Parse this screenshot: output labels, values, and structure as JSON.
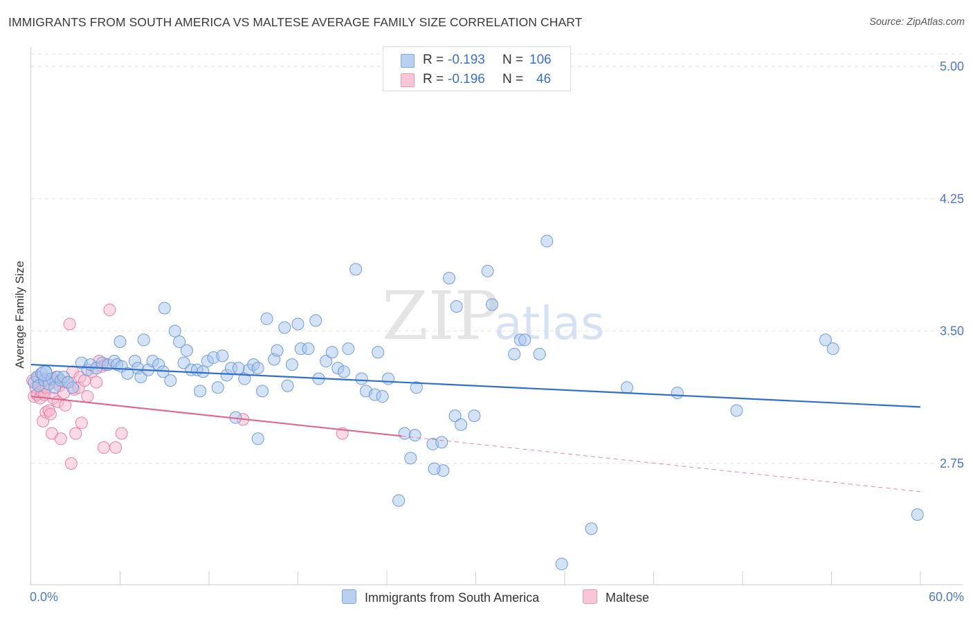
{
  "header": {
    "title": "IMMIGRANTS FROM SOUTH AMERICA VS MALTESE AVERAGE FAMILY SIZE CORRELATION CHART",
    "source": "Source: ZipAtlas.com"
  },
  "watermark": {
    "zip": "ZIP",
    "atlas": "atlas"
  },
  "legend": {
    "r_label": "R =",
    "n_label": "N =",
    "entries": [
      {
        "r": "-0.193",
        "n": "106"
      },
      {
        "r": "-0.196",
        "n": "46"
      }
    ]
  },
  "colors": {
    "blue_fill": "#a9c6ee",
    "blue_stroke": "#6f9bd8",
    "blue_line": "#2f6fcc",
    "pink_fill": "#f6b8cc",
    "pink_stroke": "#e87fa2",
    "pink_line": "#e06590",
    "tick_text": "#4a78c8"
  },
  "chart_data": {
    "type": "scatter",
    "title": "IMMIGRANTS FROM SOUTH AMERICA VS MALTESE AVERAGE FAMILY SIZE CORRELATION CHART",
    "xlabel": "",
    "ylabel": "Average Family Size",
    "xlim": [
      0,
      60
    ],
    "ylim": [
      2.0,
      5.1
    ],
    "x_tick_labels": [
      "0.0%",
      "60.0%"
    ],
    "y_ticks": [
      2.75,
      3.5,
      4.25,
      5.0
    ],
    "y_tick_labels": [
      "2.75",
      "3.50",
      "4.25",
      "5.00"
    ],
    "grid": "horizontal dashed",
    "legend_position": "top-center",
    "series": [
      {
        "name": "Immigrants from South America",
        "color": "#a9c6ee",
        "r": -0.193,
        "n": 106,
        "trend": {
          "x": [
            0,
            60
          ],
          "y": [
            3.31,
            3.07
          ],
          "dashed_after": null
        },
        "points": [
          [
            0.2,
            3.21
          ],
          [
            0.4,
            3.24
          ],
          [
            0.5,
            3.19
          ],
          [
            0.7,
            3.26
          ],
          [
            0.9,
            3.22
          ],
          [
            1.0,
            3.27
          ],
          [
            1.2,
            3.2
          ],
          [
            1.4,
            3.23
          ],
          [
            1.6,
            3.18
          ],
          [
            1.8,
            3.24
          ],
          [
            2.0,
            3.22
          ],
          [
            2.2,
            3.24
          ],
          [
            2.5,
            3.21
          ],
          [
            2.8,
            3.18
          ],
          [
            3.4,
            3.32
          ],
          [
            3.8,
            3.28
          ],
          [
            4.0,
            3.31
          ],
          [
            4.4,
            3.29
          ],
          [
            4.8,
            3.32
          ],
          [
            5.2,
            3.31
          ],
          [
            5.6,
            3.33
          ],
          [
            5.8,
            3.31
          ],
          [
            6.0,
            3.44
          ],
          [
            6.1,
            3.3
          ],
          [
            6.5,
            3.26
          ],
          [
            7.0,
            3.33
          ],
          [
            7.2,
            3.29
          ],
          [
            7.4,
            3.24
          ],
          [
            7.6,
            3.45
          ],
          [
            7.9,
            3.28
          ],
          [
            8.2,
            3.33
          ],
          [
            8.6,
            3.31
          ],
          [
            8.9,
            3.27
          ],
          [
            9.0,
            3.63
          ],
          [
            9.4,
            3.22
          ],
          [
            9.7,
            3.5
          ],
          [
            10.0,
            3.44
          ],
          [
            10.3,
            3.32
          ],
          [
            10.5,
            3.39
          ],
          [
            10.8,
            3.28
          ],
          [
            11.2,
            3.28
          ],
          [
            11.4,
            3.16
          ],
          [
            11.6,
            3.27
          ],
          [
            11.9,
            3.33
          ],
          [
            12.3,
            3.35
          ],
          [
            12.6,
            3.18
          ],
          [
            12.9,
            3.36
          ],
          [
            13.2,
            3.25
          ],
          [
            13.5,
            3.29
          ],
          [
            14.0,
            3.29
          ],
          [
            13.8,
            3.01
          ],
          [
            14.4,
            3.23
          ],
          [
            14.7,
            3.28
          ],
          [
            15.0,
            3.31
          ],
          [
            15.3,
            3.29
          ],
          [
            15.3,
            2.89
          ],
          [
            15.6,
            3.16
          ],
          [
            15.9,
            3.57
          ],
          [
            16.4,
            3.34
          ],
          [
            16.6,
            3.39
          ],
          [
            17.1,
            3.52
          ],
          [
            17.3,
            3.19
          ],
          [
            17.6,
            3.31
          ],
          [
            18.0,
            3.54
          ],
          [
            18.2,
            3.4
          ],
          [
            18.7,
            3.4
          ],
          [
            19.2,
            3.56
          ],
          [
            19.4,
            3.23
          ],
          [
            19.9,
            3.33
          ],
          [
            20.3,
            3.38
          ],
          [
            20.7,
            3.29
          ],
          [
            21.1,
            3.27
          ],
          [
            21.4,
            3.4
          ],
          [
            21.9,
            3.85
          ],
          [
            22.3,
            3.23
          ],
          [
            22.6,
            3.16
          ],
          [
            23.2,
            3.14
          ],
          [
            23.4,
            3.38
          ],
          [
            23.7,
            3.13
          ],
          [
            24.1,
            3.23
          ],
          [
            24.8,
            2.54
          ],
          [
            25.2,
            2.92
          ],
          [
            25.6,
            2.78
          ],
          [
            25.9,
            2.91
          ],
          [
            26.0,
            3.18
          ],
          [
            27.1,
            2.86
          ],
          [
            27.7,
            2.87
          ],
          [
            27.8,
            2.71
          ],
          [
            28.2,
            3.8
          ],
          [
            28.6,
            3.02
          ],
          [
            27.2,
            2.72
          ],
          [
            28.7,
            3.64
          ],
          [
            29.0,
            2.97
          ],
          [
            29.9,
            3.02
          ],
          [
            30.8,
            3.84
          ],
          [
            31.1,
            3.65
          ],
          [
            32.6,
            3.37
          ],
          [
            33.0,
            3.45
          ],
          [
            33.3,
            3.45
          ],
          [
            34.3,
            3.37
          ],
          [
            34.8,
            4.01
          ],
          [
            35.8,
            2.18
          ],
          [
            37.8,
            2.38
          ],
          [
            40.2,
            3.18
          ],
          [
            43.6,
            3.15
          ],
          [
            47.6,
            3.05
          ],
          [
            53.6,
            3.45
          ],
          [
            54.1,
            3.4
          ],
          [
            59.8,
            2.46
          ]
        ]
      },
      {
        "name": "Maltese",
        "color": "#f6b8cc",
        "r": -0.196,
        "n": 46,
        "trend": {
          "x": [
            0,
            60
          ],
          "y": [
            3.13,
            2.59
          ],
          "dashed_after": 25
        },
        "points": [
          [
            0.1,
            3.22
          ],
          [
            0.2,
            3.13
          ],
          [
            0.3,
            3.18
          ],
          [
            0.4,
            3.14
          ],
          [
            0.5,
            3.24
          ],
          [
            0.6,
            3.12
          ],
          [
            0.7,
            3.16
          ],
          [
            0.8,
            3.19
          ],
          [
            0.9,
            3.14
          ],
          [
            1.0,
            3.18
          ],
          [
            1.1,
            3.23
          ],
          [
            0.8,
            2.99
          ],
          [
            1.0,
            3.04
          ],
          [
            1.2,
            3.05
          ],
          [
            1.3,
            3.03
          ],
          [
            1.4,
            2.92
          ],
          [
            1.5,
            3.12
          ],
          [
            1.6,
            3.21
          ],
          [
            1.7,
            3.24
          ],
          [
            1.8,
            3.1
          ],
          [
            1.9,
            3.19
          ],
          [
            2.0,
            2.89
          ],
          [
            2.2,
            3.15
          ],
          [
            2.3,
            3.08
          ],
          [
            2.4,
            3.21
          ],
          [
            2.6,
            3.54
          ],
          [
            2.7,
            2.75
          ],
          [
            2.8,
            3.27
          ],
          [
            2.9,
            3.17
          ],
          [
            3.0,
            2.92
          ],
          [
            3.2,
            3.18
          ],
          [
            3.3,
            3.24
          ],
          [
            3.4,
            2.98
          ],
          [
            3.6,
            3.22
          ],
          [
            3.8,
            3.13
          ],
          [
            4.1,
            3.27
          ],
          [
            4.4,
            3.21
          ],
          [
            4.6,
            3.33
          ],
          [
            4.8,
            3.3
          ],
          [
            4.9,
            2.84
          ],
          [
            5.0,
            3.31
          ],
          [
            5.3,
            3.62
          ],
          [
            5.7,
            2.84
          ],
          [
            6.1,
            2.92
          ],
          [
            14.3,
            3.0
          ],
          [
            21.0,
            2.92
          ]
        ]
      }
    ]
  },
  "bottom_legend": {
    "items": [
      {
        "label": "Immigrants from South America"
      },
      {
        "label": "Maltese"
      }
    ]
  }
}
